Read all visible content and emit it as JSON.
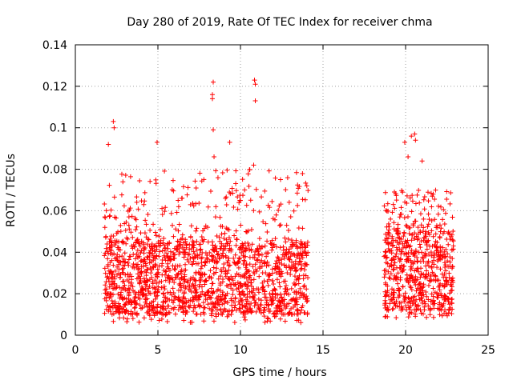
{
  "chart_data": {
    "type": "scatter",
    "title": "Day 280 of 2019, Rate Of TEC Index for receiver chma",
    "xlabel": "GPS time / hours",
    "ylabel": "ROTI / TECUs",
    "xlim": [
      0,
      25
    ],
    "ylim": [
      0,
      0.14
    ],
    "xticks": [
      "0",
      "5",
      "10",
      "15",
      "20",
      "25"
    ],
    "yticks": [
      "0",
      "0.02",
      "0.04",
      "0.06",
      "0.08",
      "0.1",
      "0.12",
      "0.14"
    ],
    "grid": true,
    "marker": "+",
    "color": "#ff0000",
    "series": [
      {
        "name": "ROTI",
        "segments": [
          {
            "x_range": [
              1.75,
              14.1
            ],
            "typical": [
              0.01,
              0.045
            ],
            "extreme_low": 0.006,
            "extreme_high": 0.08
          },
          {
            "x_range": [
              18.7,
              22.9
            ],
            "typical": [
              0.012,
              0.05
            ],
            "extreme_low": 0.008,
            "extreme_high": 0.07
          }
        ],
        "peaks": [
          {
            "x": 2.3,
            "y": 0.103
          },
          {
            "x": 2.35,
            "y": 0.1
          },
          {
            "x": 2.0,
            "y": 0.092
          },
          {
            "x": 4.95,
            "y": 0.093
          },
          {
            "x": 8.35,
            "y": 0.122
          },
          {
            "x": 8.3,
            "y": 0.116
          },
          {
            "x": 8.3,
            "y": 0.114
          },
          {
            "x": 8.35,
            "y": 0.099
          },
          {
            "x": 8.4,
            "y": 0.086
          },
          {
            "x": 9.35,
            "y": 0.093
          },
          {
            "x": 10.85,
            "y": 0.123
          },
          {
            "x": 10.9,
            "y": 0.121
          },
          {
            "x": 10.9,
            "y": 0.113
          },
          {
            "x": 10.8,
            "y": 0.082
          },
          {
            "x": 20.55,
            "y": 0.097
          },
          {
            "x": 20.35,
            "y": 0.096
          },
          {
            "x": 20.6,
            "y": 0.094
          },
          {
            "x": 19.95,
            "y": 0.093
          },
          {
            "x": 20.15,
            "y": 0.086
          },
          {
            "x": 21.0,
            "y": 0.084
          }
        ]
      }
    ]
  }
}
